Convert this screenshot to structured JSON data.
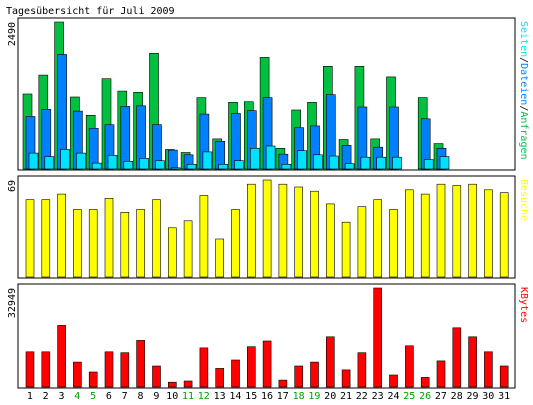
{
  "title": "Tagesübersicht für Juli 2009",
  "colors": {
    "hits": "#00c040",
    "files": "#0080ff",
    "pages": "#00e0ff",
    "visits": "#ffff00",
    "kbytes": "#ff0000",
    "weekend_label": "#00a000",
    "weekday_label": "#000000"
  },
  "chart_data": [
    {
      "type": "bar",
      "name": "hits-files-pages",
      "max_label": "2490",
      "ylim": [
        0,
        2490
      ],
      "legend": [
        "Seiten",
        "/",
        "Dateien",
        "/",
        "Anfragen"
      ],
      "legend_colors": [
        "#00e0ff",
        "#000000",
        "#0080ff",
        "#000000",
        "#00c040"
      ],
      "categories": [
        "1",
        "2",
        "3",
        "4",
        "5",
        "6",
        "7",
        "8",
        "9",
        "10",
        "11",
        "12",
        "13",
        "14",
        "15",
        "16",
        "17",
        "18",
        "19",
        "20",
        "21",
        "22",
        "23",
        "24",
        "25",
        "26",
        "27",
        "28",
        "29",
        "30",
        "31"
      ],
      "weekend": [
        4,
        5,
        11,
        12,
        18,
        19,
        25,
        26
      ],
      "series": [
        {
          "name": "Anfragen",
          "values": [
            1270,
            1590,
            2490,
            1220,
            910,
            1530,
            1320,
            1300,
            1960,
            330,
            280,
            1210,
            510,
            1130,
            1140,
            1890,
            350,
            1000,
            1130,
            1740,
            500,
            1740,
            510,
            1560,
            0,
            1210,
            430,
            0,
            0,
            0,
            0
          ]
        },
        {
          "name": "Dateien",
          "values": [
            890,
            1010,
            1940,
            980,
            690,
            750,
            1060,
            1070,
            750,
            320,
            240,
            930,
            470,
            940,
            990,
            1210,
            250,
            700,
            730,
            1260,
            400,
            1050,
            370,
            1050,
            0,
            850,
            350,
            0,
            0,
            0,
            0
          ]
        },
        {
          "name": "Seiten",
          "values": [
            270,
            210,
            330,
            270,
            100,
            230,
            130,
            180,
            140,
            20,
            80,
            290,
            80,
            140,
            350,
            390,
            80,
            310,
            240,
            220,
            90,
            200,
            200,
            200,
            0,
            160,
            210,
            0,
            0,
            0,
            0
          ]
        }
      ]
    },
    {
      "type": "bar",
      "name": "visits",
      "max_label": "69",
      "ylim": [
        0,
        69
      ],
      "legend": [
        "Besuche"
      ],
      "categories": [
        "1",
        "2",
        "3",
        "4",
        "5",
        "6",
        "7",
        "8",
        "9",
        "10",
        "11",
        "12",
        "13",
        "14",
        "15",
        "16",
        "17",
        "18",
        "19",
        "20",
        "21",
        "22",
        "23",
        "24",
        "25",
        "26",
        "27",
        "28",
        "29",
        "30",
        "31"
      ],
      "series": [
        {
          "name": "Besuche",
          "values": [
            55,
            55,
            59,
            48,
            48,
            56,
            46,
            48,
            55,
            35,
            40,
            58,
            27,
            48,
            66,
            69,
            66,
            64,
            61,
            52,
            39,
            50,
            55,
            48,
            62,
            59,
            66,
            65,
            66,
            62,
            60
          ]
        }
      ]
    },
    {
      "type": "bar",
      "name": "kbytes",
      "max_label": "32949",
      "ylim": [
        0,
        32949
      ],
      "legend": [
        "KBytes"
      ],
      "categories": [
        "1",
        "2",
        "3",
        "4",
        "5",
        "6",
        "7",
        "8",
        "9",
        "10",
        "11",
        "12",
        "13",
        "14",
        "15",
        "16",
        "17",
        "18",
        "19",
        "20",
        "21",
        "22",
        "23",
        "24",
        "25",
        "26",
        "27",
        "28",
        "29",
        "30",
        "31"
      ],
      "series": [
        {
          "name": "KBytes",
          "values": [
            11700,
            11700,
            20500,
            8300,
            5000,
            11700,
            11400,
            15500,
            7000,
            1600,
            2000,
            13000,
            6200,
            9000,
            13400,
            15300,
            2300,
            7000,
            8300,
            16700,
            5700,
            11400,
            32949,
            4000,
            13700,
            3200,
            8700,
            19700,
            16700,
            11700,
            7000
          ]
        }
      ]
    }
  ]
}
